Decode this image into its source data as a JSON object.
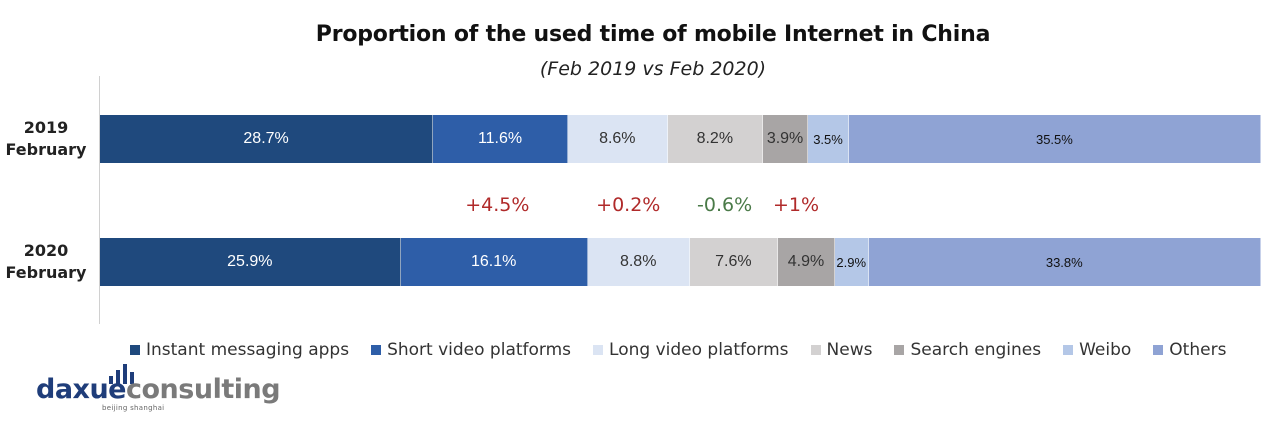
{
  "chart_data": {
    "type": "bar",
    "orientation": "horizontal",
    "stacked": true,
    "title": "Proportion of the used time of mobile Internet in China",
    "subtitle": "(Feb 2019 vs Feb 2020)",
    "categories": [
      {
        "line1": "2019",
        "line2": "February"
      },
      {
        "line1": "2020",
        "line2": "February"
      }
    ],
    "series": [
      {
        "name": "Instant messaging apps",
        "color": "#1f497d",
        "text_color": "#ffffff",
        "values": [
          28.7,
          25.9
        ],
        "labels": [
          "28.7%",
          "25.9%"
        ]
      },
      {
        "name": "Short video platforms",
        "color": "#2e5ea8",
        "text_color": "#ffffff",
        "values": [
          11.6,
          16.1
        ],
        "labels": [
          "11.6%",
          "16.1%"
        ]
      },
      {
        "name": "Long video platforms",
        "color": "#dbe4f3",
        "text_color": "#333333",
        "values": [
          8.6,
          8.8
        ],
        "labels": [
          "8.6%",
          "8.8%"
        ]
      },
      {
        "name": "News",
        "color": "#d3d1d1",
        "text_color": "#333333",
        "values": [
          8.2,
          7.6
        ],
        "labels": [
          "8.2%",
          "7.6%"
        ]
      },
      {
        "name": "Search engines",
        "color": "#a8a5a5",
        "text_color": "#333333",
        "values": [
          3.9,
          4.9
        ],
        "labels": [
          "3.9%",
          "4.9%"
        ]
      },
      {
        "name": "Weibo",
        "color": "#b4c7e7",
        "text_color": "#111111",
        "values": [
          3.5,
          2.9
        ],
        "labels": [
          "3.5%",
          "2.9%"
        ]
      },
      {
        "name": "Others",
        "color": "#8fa3d4",
        "text_color": "#111111",
        "values": [
          35.5,
          33.8
        ],
        "labels": [
          "35.5%",
          "33.8%"
        ]
      }
    ],
    "annotations": [
      {
        "text": "+4.5%",
        "series_index": 1,
        "color": "#b02a2a"
      },
      {
        "text": "+0.2%",
        "series_index": 2,
        "color": "#b02a2a"
      },
      {
        "text": "-0.6%",
        "series_index": 3,
        "color": "#4a7a48"
      },
      {
        "text": "+1%",
        "series_index": 4,
        "color": "#b02a2a"
      }
    ],
    "legend_position": "bottom",
    "grid": false
  },
  "brand": {
    "logo_part1": "daxue",
    "logo_part2": "consulting",
    "logo_sub": "beijing shanghai",
    "color1": "#1f3d7a",
    "color2": "#7a7a7a"
  }
}
